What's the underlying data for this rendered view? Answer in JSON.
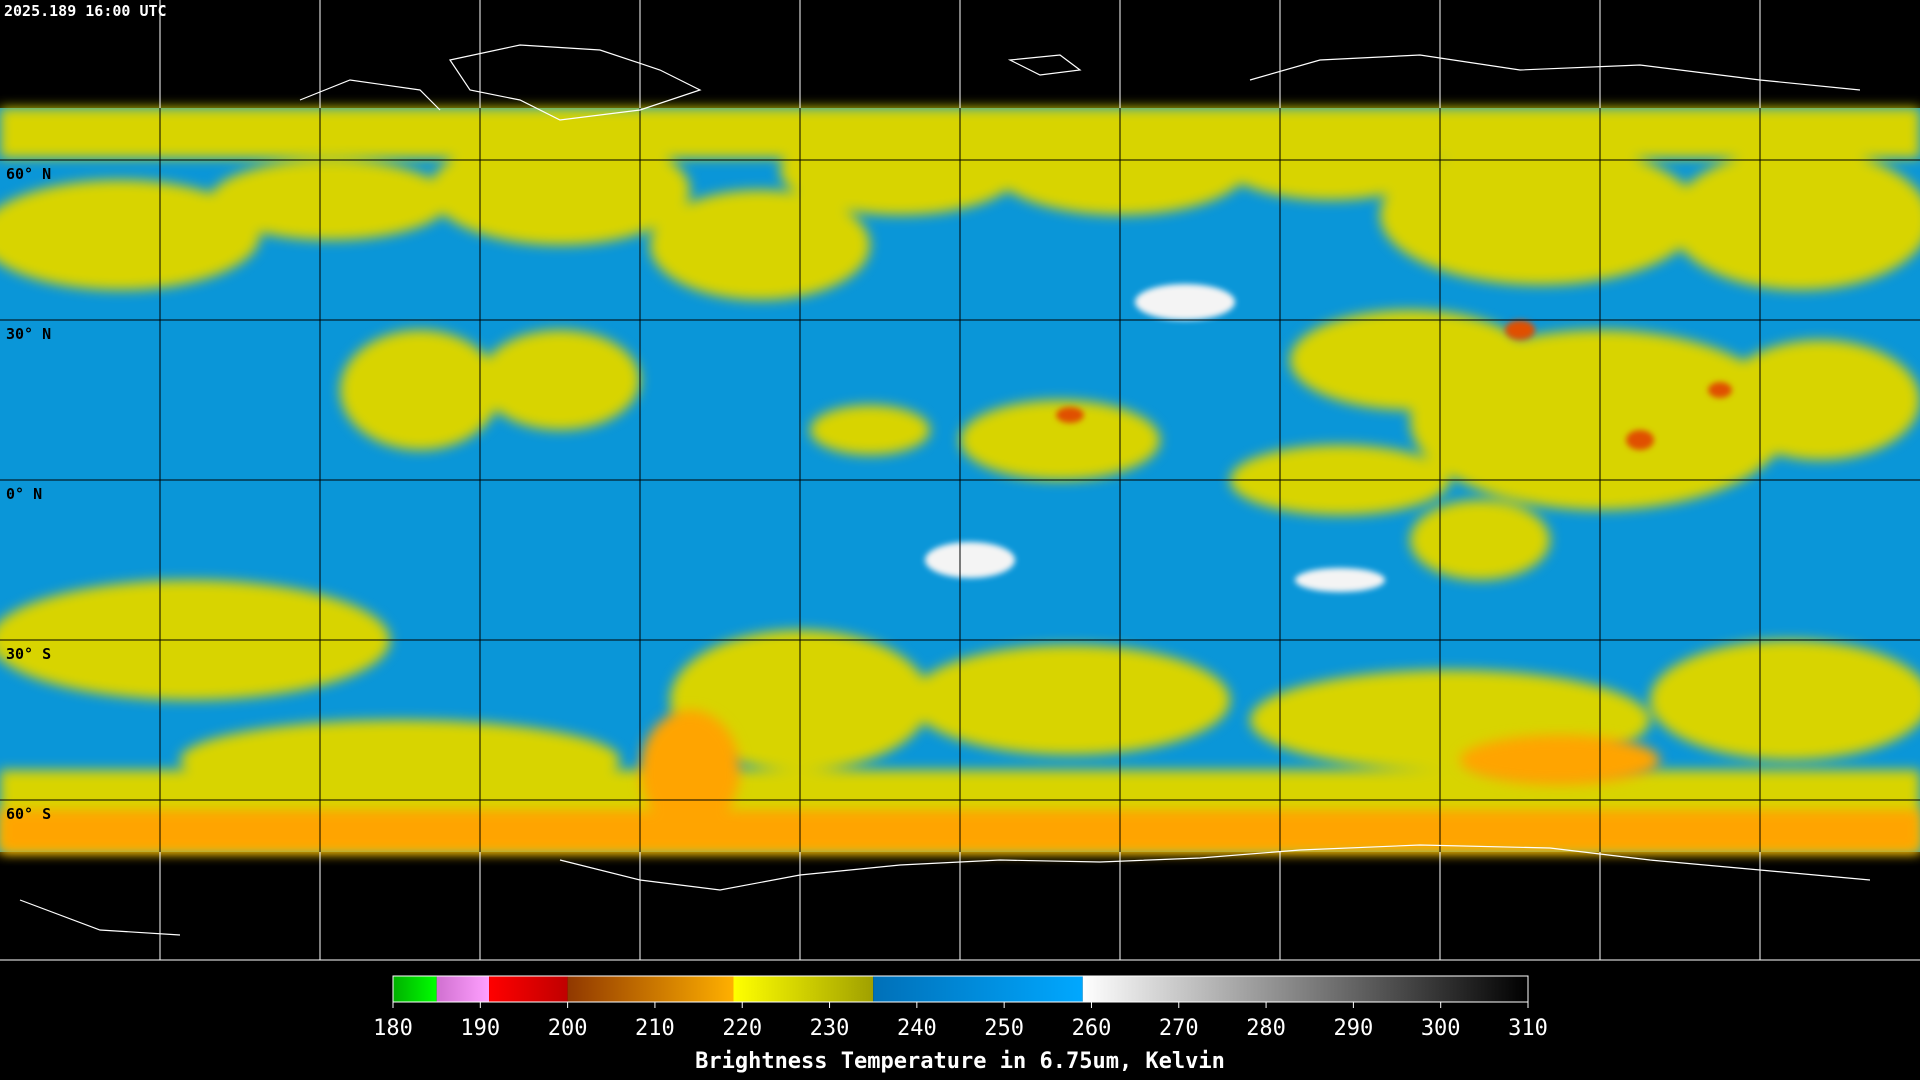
{
  "timestamp": "2025.189 16:00 UTC",
  "lat_labels": [
    "60° N",
    "30° N",
    "0° N",
    "30° S",
    "60° S"
  ],
  "colorbar": {
    "title": "Brightness Temperature in 6.75um, Kelvin",
    "range": [
      180,
      310
    ],
    "ticks": [
      180,
      190,
      200,
      210,
      220,
      230,
      240,
      250,
      260,
      270,
      280,
      290,
      300,
      310
    ],
    "segments": [
      {
        "from": 180,
        "to": 185,
        "colors": [
          "#00b000",
          "#00ff00"
        ]
      },
      {
        "from": 185,
        "to": 191,
        "colors": [
          "#d070d0",
          "#ffa0ff"
        ]
      },
      {
        "from": 191,
        "to": 200,
        "colors": [
          "#ff0000",
          "#c00000"
        ]
      },
      {
        "from": 200,
        "to": 219,
        "colors": [
          "#903800",
          "#ffb000"
        ]
      },
      {
        "from": 219,
        "to": 235,
        "colors": [
          "#ffff00",
          "#a0a000"
        ]
      },
      {
        "from": 235,
        "to": 259,
        "colors": [
          "#0070b8",
          "#00a8ff"
        ]
      },
      {
        "from": 259,
        "to": 310,
        "colors": [
          "#ffffff",
          "#000000"
        ]
      }
    ]
  }
}
